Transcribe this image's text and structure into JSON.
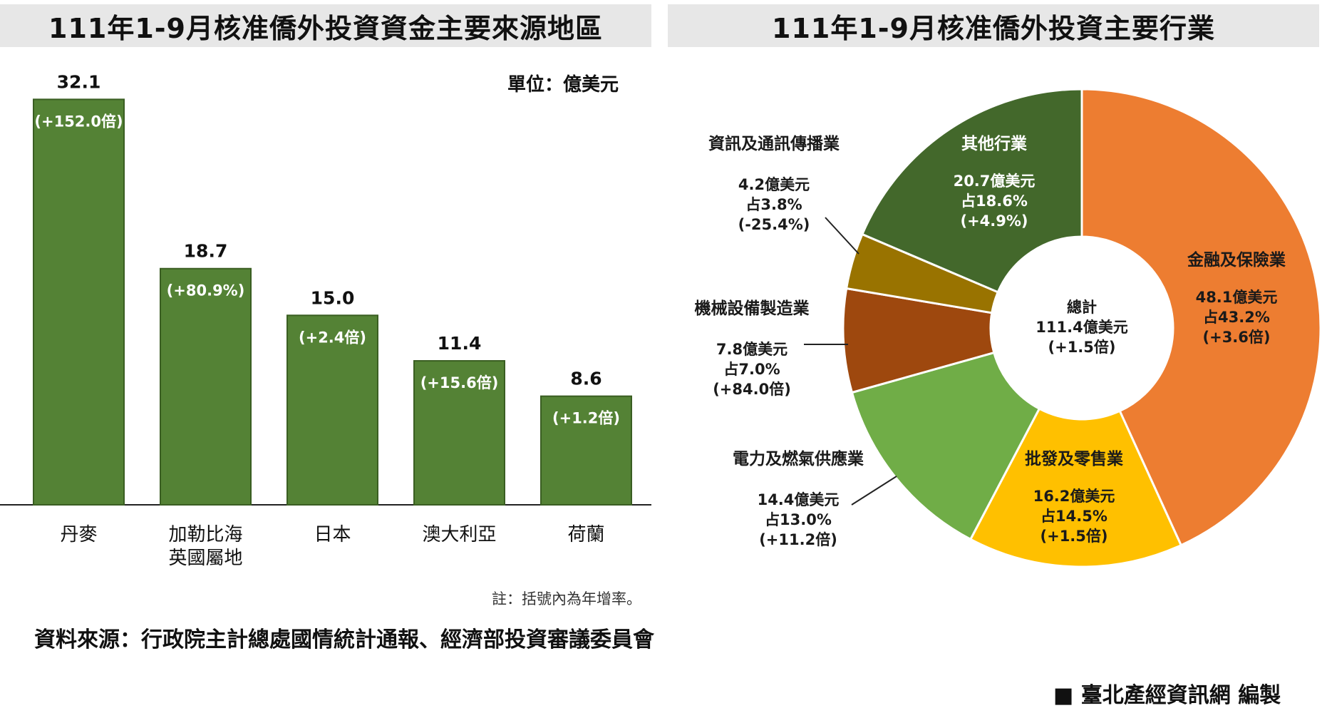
{
  "left_title": "111年1-9月核准僑外投資資金主要來源地區",
  "right_title": "111年1-9月核准僑外投資主要行業",
  "unit_label": "單位：億美元",
  "note": "註：括號內為年增率。",
  "source": "資料來源：行政院主計總處國情統計通報、經濟部投資審議委員會",
  "credit": "■ 臺北產經資訊網 編製",
  "chart_data": [
    {
      "type": "bar",
      "title": "111年1-9月核准僑外投資資金主要來源地區",
      "unit": "億美元",
      "categories": [
        [
          "丹麥"
        ],
        [
          "加勒比海",
          "英國屬地"
        ],
        [
          "日本"
        ],
        [
          "澳大利亞"
        ],
        [
          "荷蘭"
        ]
      ],
      "values": [
        32.1,
        18.7,
        15.0,
        11.4,
        8.6
      ],
      "value_labels": [
        "32.1",
        "18.7",
        "15.0",
        "11.4",
        "8.6"
      ],
      "growth_labels": [
        "(+152.0倍)",
        "(+80.9%)",
        "(+2.4倍)",
        "(+15.6倍)",
        "(+1.2倍)"
      ],
      "ylim": [
        0,
        35
      ],
      "color": "#548235"
    },
    {
      "type": "pie",
      "title": "111年1-9月核准僑外投資主要行業",
      "center": {
        "title": "總計",
        "value": "111.4億美元",
        "growth": "(+1.5倍)"
      },
      "slices": [
        {
          "name": "金融及保險業",
          "value": 48.1,
          "amount": "48.1億美元",
          "share": "占43.2%",
          "growth": "(+3.6倍)",
          "color": "#ed7d31",
          "text_color": "#1a1a1a"
        },
        {
          "name": "批發及零售業",
          "value": 16.2,
          "amount": "16.2億美元",
          "share": "占14.5%",
          "growth": "(+1.5倍)",
          "color": "#ffc000",
          "text_color": "#1a1a1a"
        },
        {
          "name": "電力及燃氣供應業",
          "value": 14.4,
          "amount": "14.4億美元",
          "share": "占13.0%",
          "growth": "(+11.2倍)",
          "color": "#70ad47",
          "text_color": "#1a1a1a"
        },
        {
          "name": "機械設備製造業",
          "value": 7.8,
          "amount": "7.8億美元",
          "share": "占7.0%",
          "growth": "(+84.0倍)",
          "color": "#9e480e",
          "text_color": "#1a1a1a"
        },
        {
          "name": "資訊及通訊傳播業",
          "value": 4.2,
          "amount": "4.2億美元",
          "share": "占3.8%",
          "growth": "(-25.4%)",
          "color": "#997300",
          "text_color": "#1a1a1a"
        },
        {
          "name": "其他行業",
          "value": 20.7,
          "amount": "20.7億美元",
          "share": "占18.6%",
          "growth": "(+4.9%)",
          "color": "#43682b",
          "text_color": "#ffffff"
        }
      ]
    }
  ]
}
